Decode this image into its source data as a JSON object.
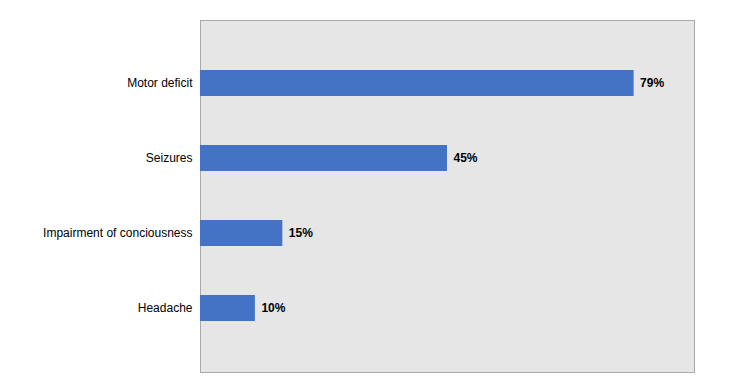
{
  "chart_data": {
    "type": "bar",
    "orientation": "horizontal",
    "categories": [
      "Headache",
      "Impairment of conciousness",
      "Seizures",
      "Motor deficit"
    ],
    "values": [
      10,
      15,
      45,
      79
    ],
    "value_labels": [
      "10%",
      "15%",
      "45%",
      "79%"
    ],
    "color": "#4472C4",
    "xlim": [
      0,
      90
    ],
    "xticks": [],
    "data_labels": true,
    "tick_labels": "y",
    "grid": false
  }
}
